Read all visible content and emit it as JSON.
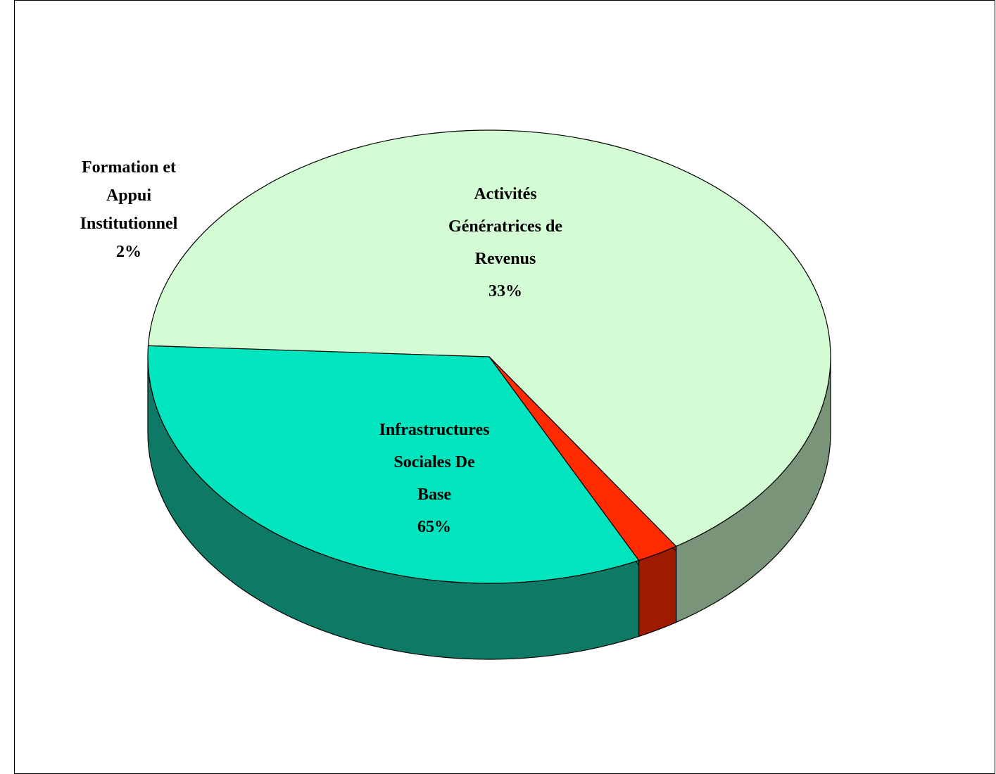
{
  "chart_data": {
    "type": "pie",
    "style": "3d",
    "title": "",
    "slices": [
      {
        "name": "Activités Génératrices de Revenus",
        "label_lines": [
          "Activités",
          "Génératrices de",
          "Revenus",
          "33%"
        ],
        "value": 33,
        "color": "#00E5BE",
        "side_color": "#0E7A66"
      },
      {
        "name": "Infrastructures Sociales De Base",
        "label_lines": [
          "Infrastructures",
          "Sociales De",
          "Base",
          "65%"
        ],
        "value": 65,
        "color": "#D4FCD4",
        "side_color": "#7A947A"
      },
      {
        "name": "Formation et Appui Institutionnel",
        "label_lines": [
          "Formation et",
          "Appui",
          "Institutionnel",
          "2%"
        ],
        "value": 2,
        "color": "#FF2A00",
        "side_color": "#9E1A00"
      }
    ],
    "legend": "none"
  }
}
